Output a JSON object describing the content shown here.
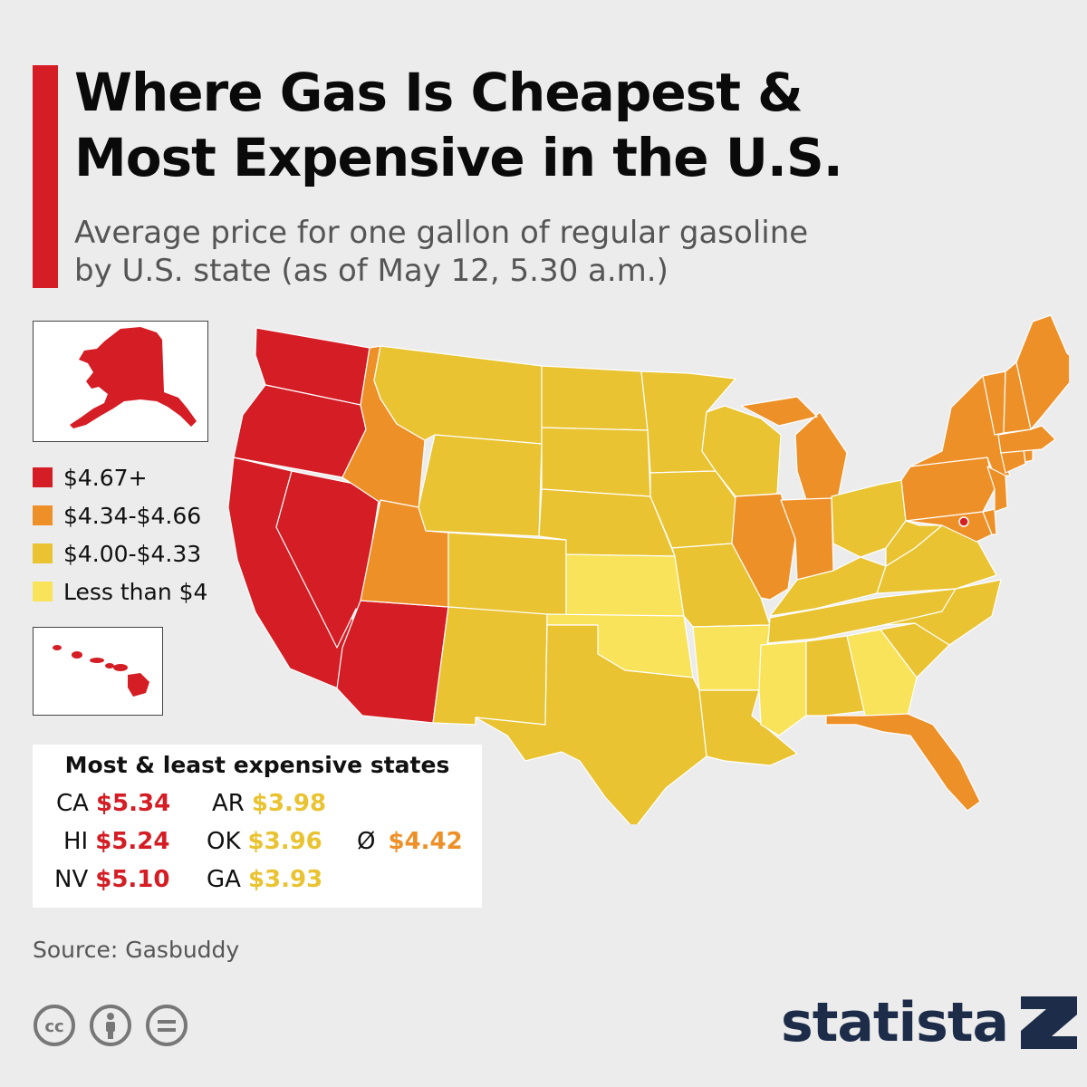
{
  "title_line1": "Where Gas Is Cheapest &",
  "title_line2": "Most Expensive in the U.S.",
  "subtitle_line1": "Average price for one gallon of regular gasoline",
  "subtitle_line2": "by U.S. state (as of May 12, 5.30 a.m.)",
  "colors": {
    "accent": "#d41d24",
    "tier1": "#d41d24",
    "tier2": "#ee9028",
    "tier3": "#e9c331",
    "tier4": "#f8e35b",
    "brand": "#1c2c49"
  },
  "legend": [
    {
      "label": "$4.67+",
      "color": "#d41d24"
    },
    {
      "label": "$4.34-$4.66",
      "color": "#ee9028"
    },
    {
      "label": "$4.00-$4.33",
      "color": "#e9c331"
    },
    {
      "label": "Less than $4",
      "color": "#f8e35b"
    }
  ],
  "stats_title": "Most & least expensive states",
  "most_expensive": [
    {
      "state": "CA",
      "price": "$5.34"
    },
    {
      "state": "HI",
      "price": "$5.24"
    },
    {
      "state": "NV",
      "price": "$5.10"
    }
  ],
  "least_expensive": [
    {
      "state": "AR",
      "price": "$3.98"
    },
    {
      "state": "OK",
      "price": "$3.96"
    },
    {
      "state": "GA",
      "price": "$3.93"
    }
  ],
  "average": {
    "symbol": "Ø",
    "price": "$4.42"
  },
  "source": "Source: Gasbuddy",
  "brand_name": "statista",
  "icons": [
    "cc-icon",
    "attribution-icon",
    "no-derivatives-icon",
    "statista-logo-icon"
  ]
}
